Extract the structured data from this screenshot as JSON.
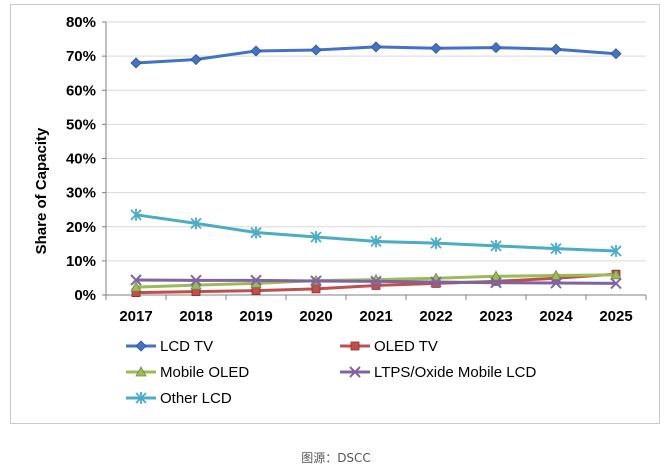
{
  "chart_data": {
    "type": "line",
    "title": "",
    "xlabel": "",
    "ylabel": "Share of Capacity",
    "ylim": [
      0,
      80
    ],
    "y_unit": "%",
    "yticks": [
      "0%",
      "10%",
      "20%",
      "30%",
      "40%",
      "50%",
      "60%",
      "70%",
      "80%"
    ],
    "categories": [
      "2017",
      "2018",
      "2019",
      "2020",
      "2021",
      "2022",
      "2023",
      "2024",
      "2025"
    ],
    "legend_position": "bottom",
    "series": [
      {
        "name": "LCD TV",
        "color": "#4472C4",
        "marker": "diamond",
        "values": [
          68,
          69,
          71.5,
          71.8,
          72.7,
          72.3,
          72.5,
          72,
          70.7
        ]
      },
      {
        "name": "OLED TV",
        "color": "#C0504D",
        "marker": "square",
        "values": [
          0.7,
          1.0,
          1.3,
          1.8,
          2.8,
          3.4,
          4.0,
          4.9,
          6.1
        ]
      },
      {
        "name": "Mobile OLED",
        "color": "#9BBB59",
        "marker": "triangle",
        "values": [
          2.3,
          2.9,
          3.4,
          4.2,
          4.5,
          4.9,
          5.5,
          5.7,
          5.9
        ]
      },
      {
        "name": "LTPS/Oxide Mobile LCD",
        "color": "#8064A2",
        "marker": "x",
        "values": [
          4.4,
          4.3,
          4.3,
          4.1,
          4.0,
          3.8,
          3.6,
          3.5,
          3.4
        ]
      },
      {
        "name": "Other LCD",
        "color": "#4BACC6",
        "marker": "star",
        "values": [
          23.5,
          21.0,
          18.3,
          17.0,
          15.7,
          15.2,
          14.4,
          13.6,
          12.9
        ]
      }
    ]
  },
  "caption": "图源：DSCC"
}
